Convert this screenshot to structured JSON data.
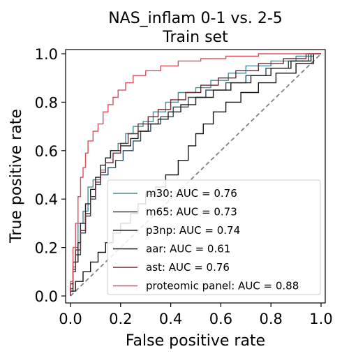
{
  "chart_data": {
    "type": "line",
    "title_line1": "NAS_inflam 0-1 vs. 2-5",
    "title_line2": "Train set",
    "xlabel": "False positive rate",
    "ylabel": "True positive rate",
    "xlim": [
      0,
      1
    ],
    "ylim": [
      0,
      1
    ],
    "xticks": [
      "0.0",
      "0.2",
      "0.4",
      "0.6",
      "0.8",
      "1.0"
    ],
    "yticks": [
      "0.0",
      "0.2",
      "0.4",
      "0.6",
      "0.8",
      "1.0"
    ],
    "grid": false,
    "legend_position": "lower-right",
    "diagonal_color": "#808080",
    "series": [
      {
        "name": "m30: AUC = 0.76",
        "color": "#4a8c94",
        "points": [
          [
            0,
            0
          ],
          [
            0,
            0.03
          ],
          [
            0.01,
            0.03
          ],
          [
            0.01,
            0.12
          ],
          [
            0.02,
            0.12
          ],
          [
            0.02,
            0.2
          ],
          [
            0.03,
            0.2
          ],
          [
            0.03,
            0.3
          ],
          [
            0.05,
            0.3
          ],
          [
            0.05,
            0.35
          ],
          [
            0.07,
            0.35
          ],
          [
            0.07,
            0.45
          ],
          [
            0.09,
            0.45
          ],
          [
            0.09,
            0.48
          ],
          [
            0.12,
            0.48
          ],
          [
            0.12,
            0.52
          ],
          [
            0.14,
            0.52
          ],
          [
            0.14,
            0.57
          ],
          [
            0.16,
            0.57
          ],
          [
            0.16,
            0.6
          ],
          [
            0.19,
            0.6
          ],
          [
            0.19,
            0.63
          ],
          [
            0.22,
            0.63
          ],
          [
            0.22,
            0.67
          ],
          [
            0.25,
            0.67
          ],
          [
            0.25,
            0.7
          ],
          [
            0.29,
            0.7
          ],
          [
            0.29,
            0.72
          ],
          [
            0.33,
            0.72
          ],
          [
            0.33,
            0.76
          ],
          [
            0.38,
            0.76
          ],
          [
            0.38,
            0.8
          ],
          [
            0.43,
            0.8
          ],
          [
            0.43,
            0.84
          ],
          [
            0.5,
            0.84
          ],
          [
            0.5,
            0.86
          ],
          [
            0.56,
            0.86
          ],
          [
            0.56,
            0.89
          ],
          [
            0.63,
            0.89
          ],
          [
            0.63,
            0.92
          ],
          [
            0.7,
            0.92
          ],
          [
            0.7,
            0.95
          ],
          [
            0.8,
            0.95
          ],
          [
            0.8,
            0.97
          ],
          [
            0.9,
            0.97
          ],
          [
            0.9,
            0.99
          ],
          [
            0.97,
            0.99
          ],
          [
            0.97,
            1
          ],
          [
            1,
            1
          ]
        ]
      },
      {
        "name": "m65: AUC = 0.73",
        "color": "#2c4a5e",
        "points": [
          [
            0,
            0
          ],
          [
            0,
            0.02
          ],
          [
            0.01,
            0.02
          ],
          [
            0.01,
            0.1
          ],
          [
            0.02,
            0.1
          ],
          [
            0.02,
            0.17
          ],
          [
            0.04,
            0.17
          ],
          [
            0.04,
            0.26
          ],
          [
            0.06,
            0.26
          ],
          [
            0.06,
            0.33
          ],
          [
            0.08,
            0.33
          ],
          [
            0.08,
            0.4
          ],
          [
            0.1,
            0.4
          ],
          [
            0.1,
            0.46
          ],
          [
            0.12,
            0.46
          ],
          [
            0.12,
            0.5
          ],
          [
            0.15,
            0.5
          ],
          [
            0.15,
            0.53
          ],
          [
            0.18,
            0.53
          ],
          [
            0.18,
            0.56
          ],
          [
            0.21,
            0.56
          ],
          [
            0.21,
            0.6
          ],
          [
            0.25,
            0.6
          ],
          [
            0.25,
            0.64
          ],
          [
            0.28,
            0.64
          ],
          [
            0.28,
            0.68
          ],
          [
            0.32,
            0.68
          ],
          [
            0.32,
            0.71
          ],
          [
            0.36,
            0.71
          ],
          [
            0.36,
            0.74
          ],
          [
            0.41,
            0.74
          ],
          [
            0.41,
            0.78
          ],
          [
            0.47,
            0.78
          ],
          [
            0.47,
            0.82
          ],
          [
            0.54,
            0.82
          ],
          [
            0.54,
            0.85
          ],
          [
            0.62,
            0.85
          ],
          [
            0.62,
            0.88
          ],
          [
            0.7,
            0.88
          ],
          [
            0.7,
            0.91
          ],
          [
            0.78,
            0.91
          ],
          [
            0.78,
            0.94
          ],
          [
            0.87,
            0.94
          ],
          [
            0.87,
            0.97
          ],
          [
            0.95,
            0.97
          ],
          [
            0.95,
            1
          ],
          [
            1,
            1
          ]
        ]
      },
      {
        "name": "p3np: AUC = 0.74",
        "color": "#1f1f1f",
        "points": [
          [
            0,
            0
          ],
          [
            0,
            0.05
          ],
          [
            0.01,
            0.05
          ],
          [
            0.01,
            0.14
          ],
          [
            0.03,
            0.14
          ],
          [
            0.03,
            0.22
          ],
          [
            0.04,
            0.22
          ],
          [
            0.04,
            0.3
          ],
          [
            0.06,
            0.3
          ],
          [
            0.06,
            0.38
          ],
          [
            0.08,
            0.38
          ],
          [
            0.08,
            0.44
          ],
          [
            0.1,
            0.44
          ],
          [
            0.1,
            0.49
          ],
          [
            0.12,
            0.49
          ],
          [
            0.12,
            0.54
          ],
          [
            0.14,
            0.54
          ],
          [
            0.14,
            0.57
          ],
          [
            0.16,
            0.57
          ],
          [
            0.16,
            0.6
          ],
          [
            0.2,
            0.6
          ],
          [
            0.2,
            0.62
          ],
          [
            0.24,
            0.62
          ],
          [
            0.24,
            0.65
          ],
          [
            0.27,
            0.65
          ],
          [
            0.27,
            0.68
          ],
          [
            0.31,
            0.68
          ],
          [
            0.31,
            0.71
          ],
          [
            0.35,
            0.71
          ],
          [
            0.35,
            0.73
          ],
          [
            0.39,
            0.73
          ],
          [
            0.39,
            0.76
          ],
          [
            0.44,
            0.76
          ],
          [
            0.44,
            0.79
          ],
          [
            0.5,
            0.79
          ],
          [
            0.5,
            0.82
          ],
          [
            0.57,
            0.82
          ],
          [
            0.57,
            0.85
          ],
          [
            0.64,
            0.85
          ],
          [
            0.64,
            0.88
          ],
          [
            0.72,
            0.88
          ],
          [
            0.72,
            0.91
          ],
          [
            0.8,
            0.91
          ],
          [
            0.8,
            0.94
          ],
          [
            0.88,
            0.94
          ],
          [
            0.88,
            0.97
          ],
          [
            0.96,
            0.97
          ],
          [
            0.96,
            1
          ],
          [
            1,
            1
          ]
        ]
      },
      {
        "name": "aar: AUC = 0.61",
        "color": "#151515",
        "points": [
          [
            0,
            0
          ],
          [
            0,
            0.02
          ],
          [
            0.02,
            0.02
          ],
          [
            0.02,
            0.06
          ],
          [
            0.05,
            0.06
          ],
          [
            0.05,
            0.1
          ],
          [
            0.08,
            0.1
          ],
          [
            0.08,
            0.14
          ],
          [
            0.11,
            0.14
          ],
          [
            0.11,
            0.18
          ],
          [
            0.14,
            0.18
          ],
          [
            0.14,
            0.22
          ],
          [
            0.17,
            0.22
          ],
          [
            0.17,
            0.26
          ],
          [
            0.2,
            0.26
          ],
          [
            0.2,
            0.3
          ],
          [
            0.24,
            0.3
          ],
          [
            0.24,
            0.34
          ],
          [
            0.27,
            0.34
          ],
          [
            0.27,
            0.38
          ],
          [
            0.3,
            0.38
          ],
          [
            0.3,
            0.42
          ],
          [
            0.34,
            0.42
          ],
          [
            0.34,
            0.45
          ],
          [
            0.38,
            0.45
          ],
          [
            0.38,
            0.5
          ],
          [
            0.43,
            0.5
          ],
          [
            0.43,
            0.56
          ],
          [
            0.47,
            0.56
          ],
          [
            0.47,
            0.62
          ],
          [
            0.5,
            0.62
          ],
          [
            0.5,
            0.67
          ],
          [
            0.53,
            0.67
          ],
          [
            0.53,
            0.71
          ],
          [
            0.57,
            0.71
          ],
          [
            0.57,
            0.76
          ],
          [
            0.62,
            0.76
          ],
          [
            0.62,
            0.8
          ],
          [
            0.68,
            0.8
          ],
          [
            0.68,
            0.84
          ],
          [
            0.75,
            0.84
          ],
          [
            0.75,
            0.88
          ],
          [
            0.82,
            0.88
          ],
          [
            0.82,
            0.92
          ],
          [
            0.9,
            0.92
          ],
          [
            0.9,
            0.96
          ],
          [
            0.97,
            0.96
          ],
          [
            0.97,
            1
          ],
          [
            1,
            1
          ]
        ]
      },
      {
        "name": "ast: AUC = 0.76",
        "color": "#6b2a34",
        "points": [
          [
            0,
            0
          ],
          [
            0,
            0.03
          ],
          [
            0.01,
            0.03
          ],
          [
            0.01,
            0.11
          ],
          [
            0.02,
            0.11
          ],
          [
            0.02,
            0.19
          ],
          [
            0.04,
            0.19
          ],
          [
            0.04,
            0.27
          ],
          [
            0.06,
            0.27
          ],
          [
            0.06,
            0.34
          ],
          [
            0.08,
            0.34
          ],
          [
            0.08,
            0.41
          ],
          [
            0.1,
            0.41
          ],
          [
            0.1,
            0.47
          ],
          [
            0.12,
            0.47
          ],
          [
            0.12,
            0.51
          ],
          [
            0.14,
            0.51
          ],
          [
            0.14,
            0.55
          ],
          [
            0.17,
            0.55
          ],
          [
            0.17,
            0.59
          ],
          [
            0.2,
            0.59
          ],
          [
            0.2,
            0.63
          ],
          [
            0.23,
            0.63
          ],
          [
            0.23,
            0.67
          ],
          [
            0.27,
            0.67
          ],
          [
            0.27,
            0.71
          ],
          [
            0.31,
            0.71
          ],
          [
            0.31,
            0.74
          ],
          [
            0.35,
            0.74
          ],
          [
            0.35,
            0.77
          ],
          [
            0.4,
            0.77
          ],
          [
            0.4,
            0.81
          ],
          [
            0.46,
            0.81
          ],
          [
            0.46,
            0.84
          ],
          [
            0.52,
            0.84
          ],
          [
            0.52,
            0.87
          ],
          [
            0.59,
            0.87
          ],
          [
            0.59,
            0.9
          ],
          [
            0.66,
            0.9
          ],
          [
            0.66,
            0.93
          ],
          [
            0.75,
            0.93
          ],
          [
            0.75,
            0.96
          ],
          [
            0.85,
            0.96
          ],
          [
            0.85,
            0.98
          ],
          [
            0.94,
            0.98
          ],
          [
            0.94,
            1
          ],
          [
            1,
            1
          ]
        ]
      },
      {
        "name": "proteomic panel: AUC = 0.88",
        "color": "#d9505b",
        "points": [
          [
            0,
            0
          ],
          [
            0,
            0.06
          ],
          [
            0.01,
            0.06
          ],
          [
            0.01,
            0.2
          ],
          [
            0.02,
            0.2
          ],
          [
            0.02,
            0.3
          ],
          [
            0.03,
            0.3
          ],
          [
            0.03,
            0.41
          ],
          [
            0.04,
            0.41
          ],
          [
            0.04,
            0.49
          ],
          [
            0.05,
            0.49
          ],
          [
            0.05,
            0.53
          ],
          [
            0.06,
            0.53
          ],
          [
            0.06,
            0.59
          ],
          [
            0.07,
            0.59
          ],
          [
            0.07,
            0.64
          ],
          [
            0.09,
            0.64
          ],
          [
            0.09,
            0.68
          ],
          [
            0.11,
            0.68
          ],
          [
            0.11,
            0.71
          ],
          [
            0.13,
            0.71
          ],
          [
            0.13,
            0.76
          ],
          [
            0.15,
            0.76
          ],
          [
            0.15,
            0.79
          ],
          [
            0.17,
            0.79
          ],
          [
            0.17,
            0.82
          ],
          [
            0.19,
            0.82
          ],
          [
            0.19,
            0.85
          ],
          [
            0.22,
            0.85
          ],
          [
            0.22,
            0.88
          ],
          [
            0.25,
            0.88
          ],
          [
            0.25,
            0.91
          ],
          [
            0.3,
            0.91
          ],
          [
            0.3,
            0.93
          ],
          [
            0.36,
            0.93
          ],
          [
            0.36,
            0.95
          ],
          [
            0.43,
            0.95
          ],
          [
            0.43,
            0.97
          ],
          [
            0.52,
            0.97
          ],
          [
            0.52,
            0.98
          ],
          [
            0.62,
            0.98
          ],
          [
            0.62,
            0.99
          ],
          [
            0.75,
            0.99
          ],
          [
            0.75,
            1
          ],
          [
            1,
            1
          ]
        ]
      }
    ]
  }
}
